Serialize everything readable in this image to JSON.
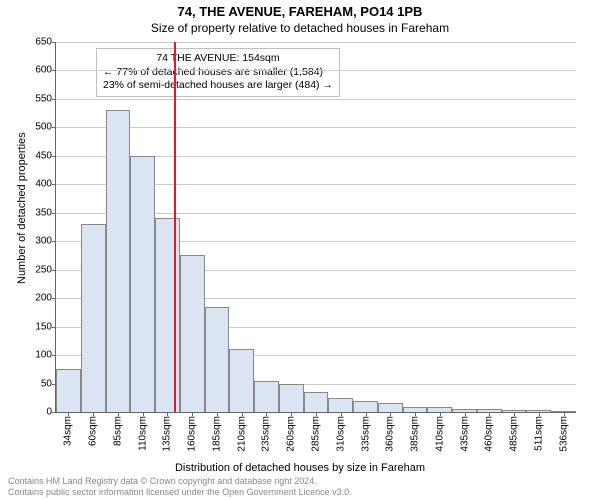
{
  "title": "74, THE AVENUE, FAREHAM, PO14 1PB",
  "subtitle": "Size of property relative to detached houses in Fareham",
  "y_axis_label": "Number of detached properties",
  "x_axis_label": "Distribution of detached houses by size in Fareham",
  "annotation": {
    "line1": "74 THE AVENUE: 154sqm",
    "line2": "← 77% of detached houses are smaller (1,584)",
    "line3": "23% of semi-detached houses are larger (484) →"
  },
  "footer": {
    "line1": "Contains HM Land Registry data © Crown copyright and database right 2024.",
    "line2": "Contains public sector information licensed under the Open Government Licence v3.0."
  },
  "chart": {
    "type": "histogram",
    "ylim": [
      0,
      650
    ],
    "ytick_step": 50,
    "yticks": [
      0,
      50,
      100,
      150,
      200,
      250,
      300,
      350,
      400,
      450,
      500,
      550,
      600,
      650
    ],
    "categories": [
      "34sqm",
      "60sqm",
      "85sqm",
      "110sqm",
      "135sqm",
      "160sqm",
      "185sqm",
      "210sqm",
      "235sqm",
      "260sqm",
      "285sqm",
      "310sqm",
      "335sqm",
      "360sqm",
      "385sqm",
      "410sqm",
      "435sqm",
      "460sqm",
      "485sqm",
      "511sqm",
      "536sqm"
    ],
    "values": [
      75,
      330,
      530,
      450,
      340,
      275,
      185,
      110,
      55,
      50,
      35,
      25,
      20,
      15,
      8,
      8,
      6,
      5,
      4,
      3,
      2
    ],
    "bar_fill": "#dbe4f2",
    "bar_stroke": "#888888",
    "grid_color": "#cccccc",
    "background_color": "#ffffff",
    "marker": {
      "value_label": "154sqm",
      "bin_index_after": 5,
      "color": "#e01b24"
    },
    "label_fontsize": 11,
    "tick_fontsize": 10,
    "title_fontsize": 13
  }
}
